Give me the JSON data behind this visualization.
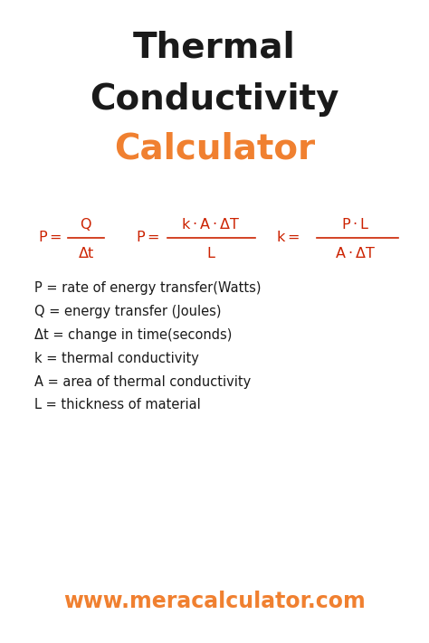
{
  "title_line1": "Thermal",
  "title_line2": "Conductivity",
  "title_color": "#1a1a1a",
  "subtitle": "Calculator",
  "subtitle_color": "#f08030",
  "title_fontsize": 28,
  "subtitle_fontsize": 28,
  "formula_color": "#cc2200",
  "definitions": [
    "P = rate of energy transfer(Watts)",
    "Q = energy transfer (Joules)",
    "Δt = change in time(seconds)",
    "k = thermal conductivity",
    "A = area of thermal conductivity",
    "L = thickness of material"
  ],
  "def_color": "#1a1a1a",
  "def_fontsize": 10.5,
  "website": "www.meracalculator.com",
  "website_color": "#f08030",
  "website_fontsize": 17,
  "bg_color": "#ffffff"
}
